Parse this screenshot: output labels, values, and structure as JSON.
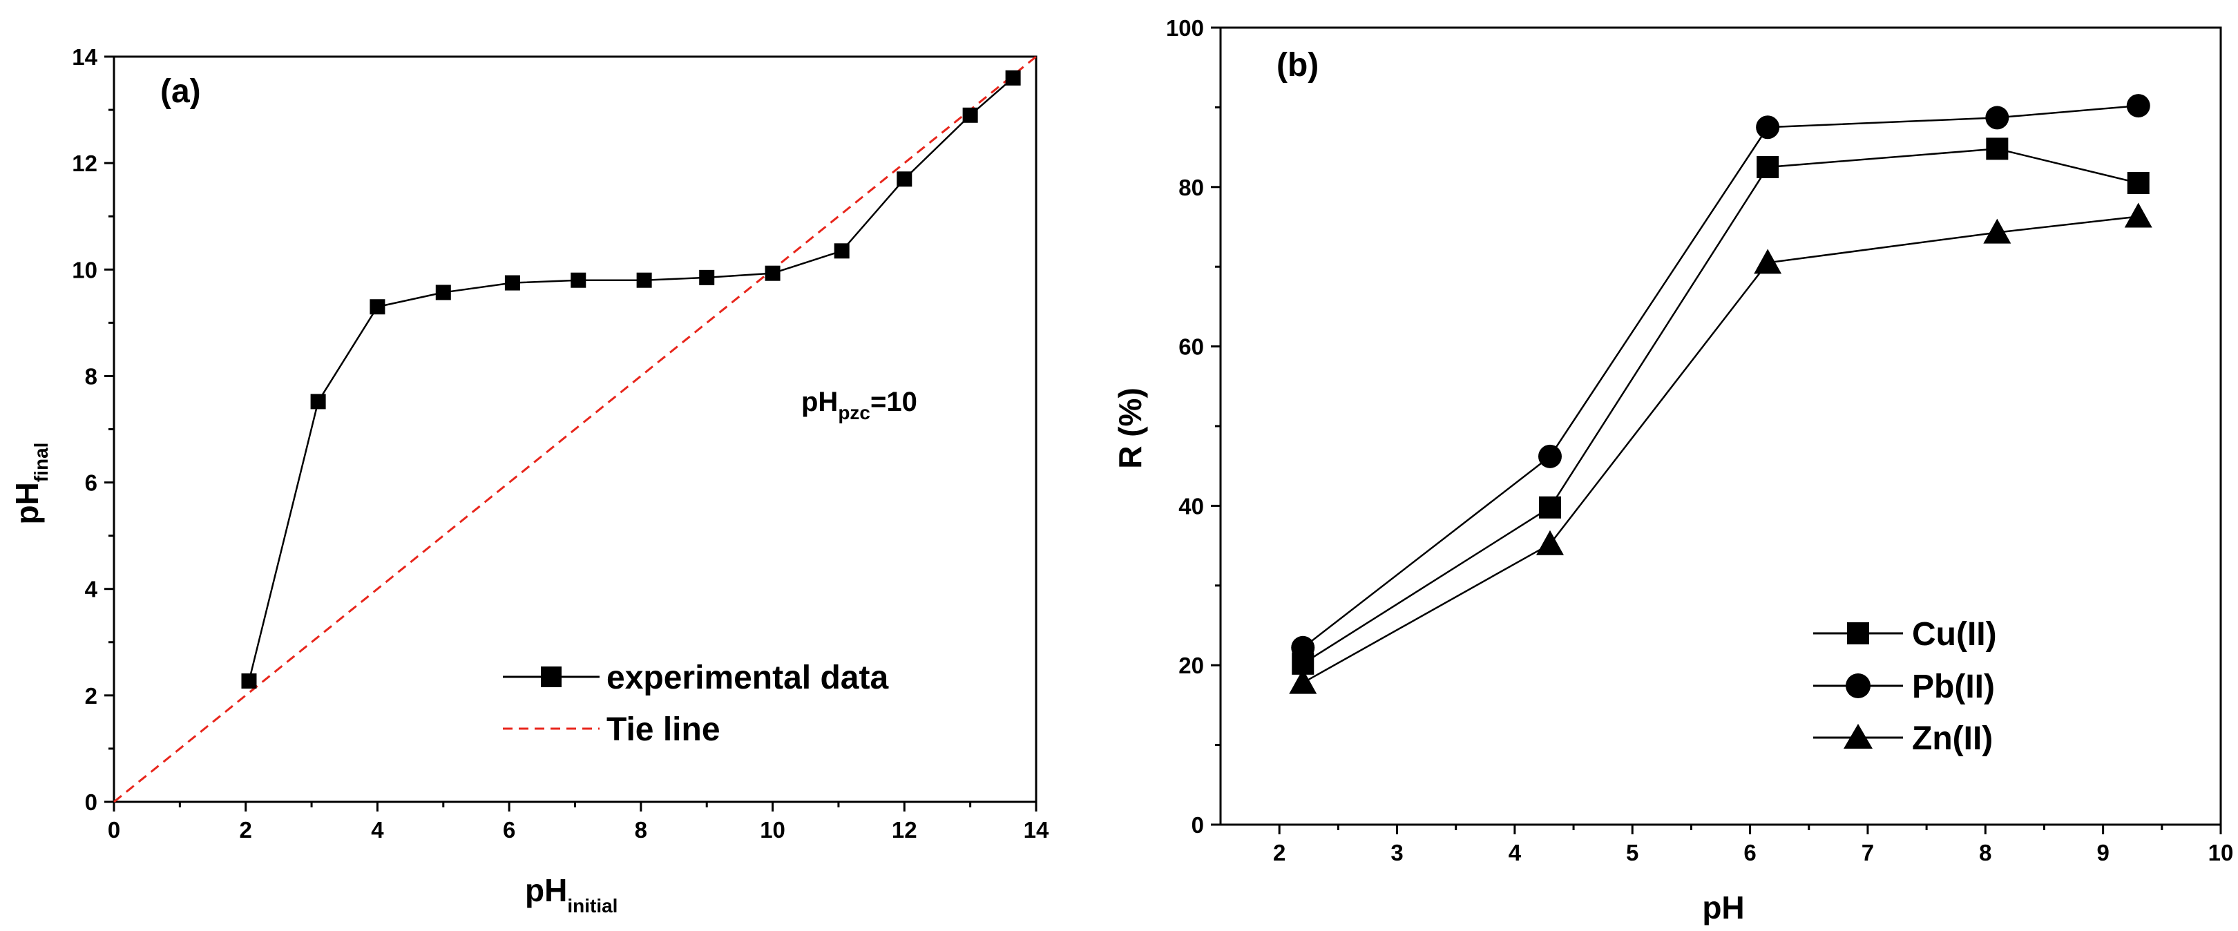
{
  "chart_data": [
    {
      "type": "line",
      "panel_label": "(a)",
      "xlabel": {
        "main": "pH",
        "sub": "initial"
      },
      "ylabel": {
        "main": "pH",
        "sub": "final"
      },
      "xlim": [
        0,
        14
      ],
      "ylim": [
        0,
        14
      ],
      "xticks": [
        0,
        2,
        4,
        6,
        8,
        10,
        12,
        14
      ],
      "yticks": [
        0,
        2,
        4,
        6,
        8,
        10,
        12,
        14
      ],
      "annotation": {
        "main": "pH",
        "sub": "pzc",
        "suffix": "=10"
      },
      "legend_position": "bottom-right",
      "series": [
        {
          "name": "experimental data",
          "marker": "square",
          "color": "#000000",
          "x": [
            2.05,
            3.1,
            4.0,
            5.0,
            6.05,
            7.05,
            8.05,
            9.0,
            10.0,
            11.05,
            12.0,
            13.0,
            13.65
          ],
          "y": [
            2.27,
            7.52,
            9.3,
            9.57,
            9.75,
            9.8,
            9.8,
            9.85,
            9.93,
            10.35,
            11.7,
            12.9,
            13.6
          ]
        },
        {
          "name": "Tie line",
          "marker": "none",
          "color": "#e8261c",
          "dash": true,
          "x": [
            0,
            14
          ],
          "y": [
            0,
            14
          ]
        }
      ]
    },
    {
      "type": "line",
      "panel_label": "(b)",
      "xlabel": "pH",
      "ylabel": "R (%)",
      "xlim": [
        1.5,
        10
      ],
      "ylim": [
        0,
        100
      ],
      "xticks": [
        2,
        3,
        4,
        5,
        6,
        7,
        8,
        9,
        10
      ],
      "yticks": [
        0,
        20,
        40,
        60,
        80,
        100
      ],
      "legend_position": "bottom-right",
      "series": [
        {
          "name": "Cu(II)",
          "marker": "square",
          "color": "#000000",
          "x": [
            2.2,
            4.3,
            6.15,
            8.1,
            9.3
          ],
          "y": [
            20.2,
            39.8,
            82.5,
            84.8,
            80.5
          ]
        },
        {
          "name": "Pb(II)",
          "marker": "circle",
          "color": "#000000",
          "x": [
            2.2,
            4.3,
            6.15,
            8.1,
            9.3
          ],
          "y": [
            22.2,
            46.2,
            87.5,
            88.7,
            90.2
          ]
        },
        {
          "name": "Zn(II)",
          "marker": "triangle",
          "color": "#000000",
          "x": [
            2.2,
            4.3,
            6.15,
            8.1,
            9.3
          ],
          "y": [
            17.8,
            35.2,
            70.5,
            74.3,
            76.3
          ]
        }
      ]
    }
  ]
}
